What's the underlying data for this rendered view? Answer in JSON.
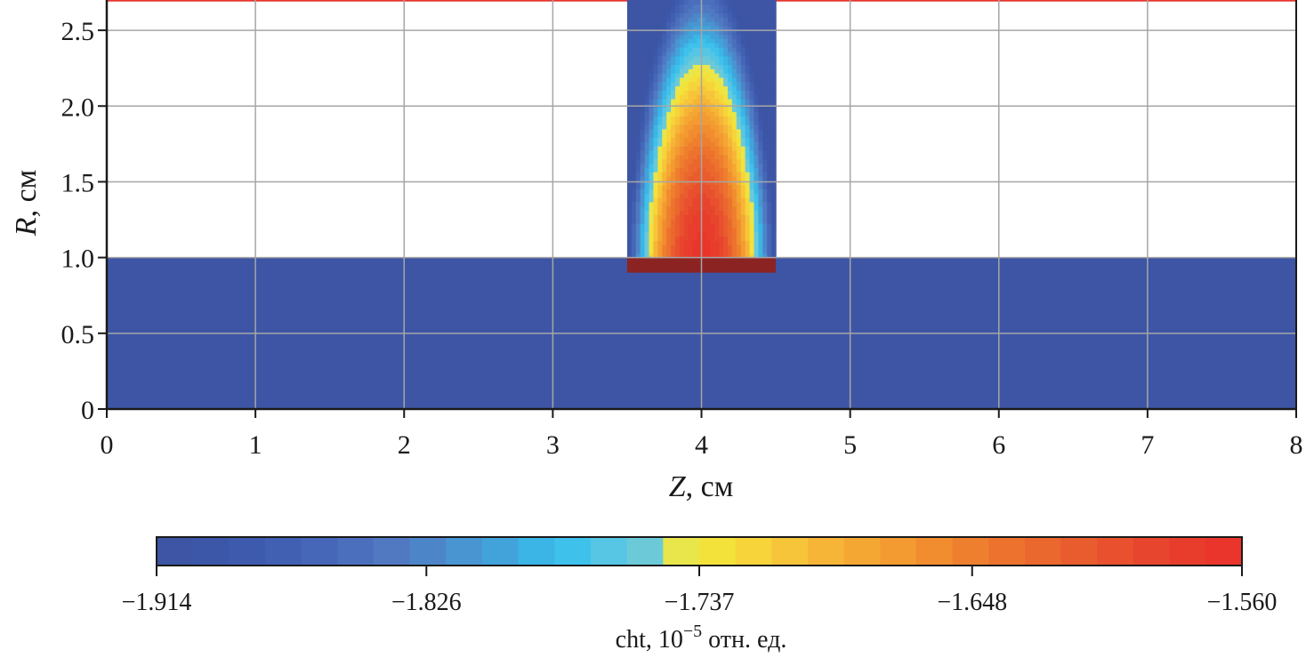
{
  "chart_data": {
    "type": "heatmap",
    "title": "",
    "xlabel": {
      "var": "Z",
      "unit": ", см"
    },
    "ylabel": {
      "var": "R",
      "unit": ", см"
    },
    "xlim": [
      0,
      8
    ],
    "ylim": [
      0,
      2.7
    ],
    "x_ticks": [
      0,
      1,
      2,
      3,
      4,
      5,
      6,
      7,
      8
    ],
    "x_tick_labels": [
      "0",
      "1",
      "2",
      "3",
      "4",
      "5",
      "6",
      "7",
      "8"
    ],
    "y_ticks": [
      0,
      0.5,
      1.0,
      1.5,
      2.0,
      2.5
    ],
    "y_tick_labels": [
      "0",
      "0.5",
      "1.0",
      "1.5",
      "2.0",
      "2.5"
    ],
    "grid": true,
    "regions": [
      {
        "name": "inner-cylinder",
        "z": [
          0,
          8
        ],
        "r": [
          0,
          1.0
        ],
        "value": -1.914
      },
      {
        "name": "base-strip",
        "z": [
          3.5,
          4.5
        ],
        "r": [
          0.9,
          1.0
        ],
        "color": "#8b2323"
      },
      {
        "name": "outer-wall",
        "z": [
          0,
          8
        ],
        "r": [
          2.69,
          2.72
        ],
        "color": "#e8352c"
      },
      {
        "name": "column",
        "z": [
          3.5,
          4.5
        ],
        "r": [
          1.0,
          2.7
        ],
        "center_z": 4.0,
        "value_center": -1.565,
        "value_edge": -1.914
      }
    ],
    "colorbar": {
      "label": {
        "prefix": "cht, 10",
        "sup": "−5",
        "suffix": " отн. ед."
      },
      "min": -1.914,
      "max": -1.56,
      "tick_values": [
        -1.914,
        -1.826,
        -1.737,
        -1.648,
        -1.56
      ],
      "tick_labels": [
        "−1.914",
        "−1.826",
        "−1.737",
        "−1.648",
        "−1.560"
      ],
      "colors": [
        "#3d55a4",
        "#3c57a8",
        "#3e5aad",
        "#4160b2",
        "#4666b7",
        "#4b6fbc",
        "#5079c2",
        "#4c86c9",
        "#4995d1",
        "#42a3da",
        "#3ab5e6",
        "#3ec2ec",
        "#56c6e4",
        "#6ccad8",
        "#e9e64b",
        "#f3e23a",
        "#f6d43a",
        "#f7c53a",
        "#f6b536",
        "#f5a733",
        "#f39a30",
        "#f18c2f",
        "#ee7f2e",
        "#ec722e",
        "#ea672e",
        "#e95c2e",
        "#e8502e",
        "#e7452d",
        "#e83c2c",
        "#e9352b"
      ]
    }
  }
}
